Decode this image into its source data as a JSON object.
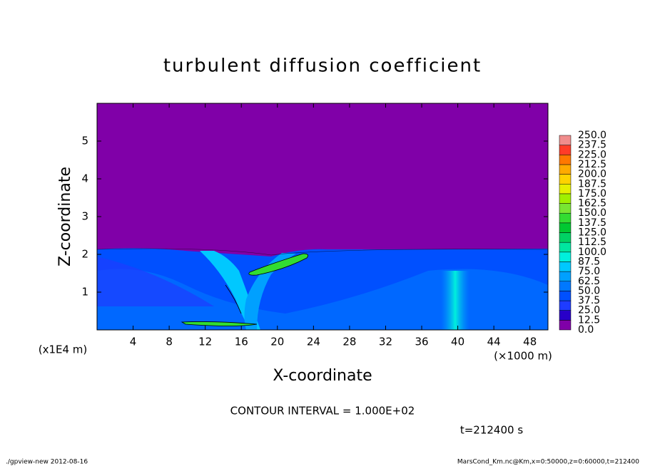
{
  "chart_data": {
    "type": "contour",
    "title": "turbulent diffusion coefficient",
    "x_label": "X-coordinate",
    "y_label": "Z-coordinate",
    "x_unit": "(×1000 m)",
    "y_unit": "(x1E4 m)",
    "xlim": [
      0,
      50
    ],
    "ylim": [
      0,
      6
    ],
    "xticks": [
      4,
      8,
      12,
      16,
      20,
      24,
      28,
      32,
      36,
      40,
      44,
      48
    ],
    "yticks": [
      1,
      2,
      3,
      4,
      5
    ],
    "contour_interval": "CONTOUR INTERVAL = 1.000E+02",
    "time_label": "t=212400 s",
    "colorbar": {
      "levels": [
        {
          "value": 0,
          "label": "0.0"
        },
        12.5,
        25,
        37.5,
        50,
        62.5,
        75,
        87.5,
        100,
        112.5,
        125,
        137.5,
        150,
        162.5,
        175,
        187.5,
        200,
        212.5,
        225,
        237.5,
        250
      ],
      "colors": [
        "#8000a8",
        "#2800c8",
        "#1e3cff",
        "#0050ff",
        "#0078ff",
        "#00a0ff",
        "#00c8ff",
        "#00f0dc",
        "#00e6a0",
        "#00d264",
        "#00c832",
        "#32dc32",
        "#78e632",
        "#a0f000",
        "#e6f000",
        "#ffd200",
        "#ffaa00",
        "#ff7800",
        "#ff3c28",
        "#f08c8c"
      ]
    },
    "footer_left": "./gpview-new  2012-08-16",
    "footer_right": "MarsCond_Km.nc@Km,x=0:50000,z=0:60000,t=212400"
  }
}
